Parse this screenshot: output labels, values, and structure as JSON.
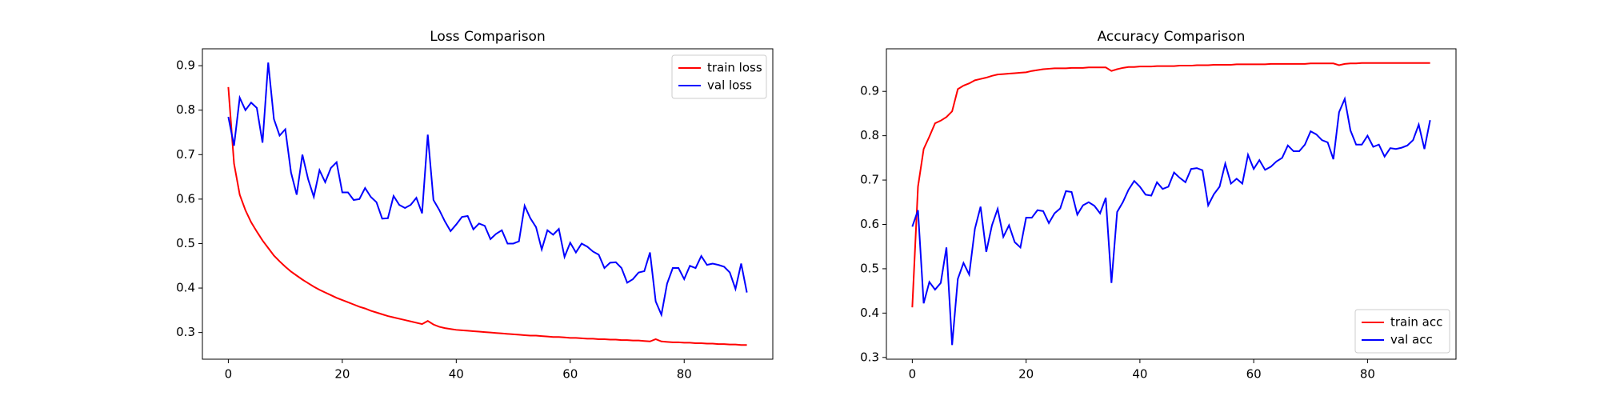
{
  "chart_data": [
    {
      "type": "line",
      "title": "Loss Comparison",
      "legend": "upper right",
      "grid": false,
      "x": [
        0,
        1,
        2,
        3,
        4,
        5,
        6,
        7,
        8,
        9,
        10,
        11,
        12,
        13,
        14,
        15,
        16,
        17,
        18,
        19,
        20,
        21,
        22,
        23,
        24,
        25,
        26,
        27,
        28,
        29,
        30,
        31,
        32,
        33,
        34,
        35,
        36,
        37,
        38,
        39,
        40,
        41,
        42,
        43,
        44,
        45,
        46,
        47,
        48,
        49,
        50,
        51,
        52,
        53,
        54,
        55,
        56,
        57,
        58,
        59,
        60,
        61,
        62,
        63,
        64,
        65,
        66,
        67,
        68,
        69,
        70,
        71,
        72,
        73,
        74,
        75,
        76,
        77,
        78,
        79,
        80,
        81,
        82,
        83,
        84,
        85,
        86,
        87,
        88,
        89,
        90,
        91
      ],
      "series": [
        {
          "name": "train loss",
          "color": "#ff0000",
          "values": [
            0.852,
            0.68,
            0.61,
            0.575,
            0.548,
            0.527,
            0.507,
            0.49,
            0.473,
            0.46,
            0.448,
            0.437,
            0.428,
            0.419,
            0.411,
            0.403,
            0.396,
            0.39,
            0.384,
            0.378,
            0.373,
            0.368,
            0.363,
            0.358,
            0.354,
            0.349,
            0.345,
            0.341,
            0.337,
            0.334,
            0.331,
            0.328,
            0.325,
            0.322,
            0.319,
            0.326,
            0.318,
            0.313,
            0.31,
            0.308,
            0.306,
            0.305,
            0.304,
            0.303,
            0.302,
            0.301,
            0.3,
            0.299,
            0.298,
            0.297,
            0.296,
            0.295,
            0.294,
            0.293,
            0.293,
            0.292,
            0.291,
            0.29,
            0.29,
            0.289,
            0.288,
            0.288,
            0.287,
            0.286,
            0.286,
            0.285,
            0.285,
            0.284,
            0.284,
            0.283,
            0.283,
            0.282,
            0.282,
            0.281,
            0.28,
            0.285,
            0.28,
            0.279,
            0.278,
            0.278,
            0.277,
            0.277,
            0.276,
            0.276,
            0.275,
            0.275,
            0.274,
            0.274,
            0.273,
            0.273,
            0.272,
            0.272
          ]
        },
        {
          "name": "val loss",
          "color": "#0000ff",
          "values": [
            0.785,
            0.72,
            0.828,
            0.8,
            0.817,
            0.805,
            0.727,
            0.907,
            0.78,
            0.743,
            0.757,
            0.66,
            0.61,
            0.7,
            0.645,
            0.605,
            0.665,
            0.638,
            0.67,
            0.683,
            0.615,
            0.615,
            0.598,
            0.6,
            0.625,
            0.605,
            0.593,
            0.556,
            0.557,
            0.607,
            0.587,
            0.58,
            0.587,
            0.603,
            0.568,
            0.745,
            0.598,
            0.576,
            0.55,
            0.528,
            0.543,
            0.56,
            0.562,
            0.532,
            0.545,
            0.54,
            0.51,
            0.522,
            0.53,
            0.5,
            0.5,
            0.505,
            0.585,
            0.557,
            0.537,
            0.487,
            0.53,
            0.52,
            0.533,
            0.47,
            0.502,
            0.48,
            0.5,
            0.493,
            0.482,
            0.475,
            0.445,
            0.457,
            0.458,
            0.445,
            0.412,
            0.42,
            0.435,
            0.438,
            0.48,
            0.37,
            0.34,
            0.41,
            0.445,
            0.445,
            0.42,
            0.45,
            0.445,
            0.472,
            0.452,
            0.455,
            0.452,
            0.448,
            0.435,
            0.398,
            0.455,
            0.39
          ]
        }
      ],
      "xlim": [
        -4.55,
        95.55
      ],
      "ylim": [
        0.24,
        0.938
      ],
      "xticks": [
        0,
        20,
        40,
        60,
        80
      ],
      "yticks": [
        0.3,
        0.4,
        0.5,
        0.6,
        0.7,
        0.8,
        0.9
      ]
    },
    {
      "type": "line",
      "title": "Accuracy Comparison",
      "legend": "lower right",
      "grid": false,
      "x": [
        0,
        1,
        2,
        3,
        4,
        5,
        6,
        7,
        8,
        9,
        10,
        11,
        12,
        13,
        14,
        15,
        16,
        17,
        18,
        19,
        20,
        21,
        22,
        23,
        24,
        25,
        26,
        27,
        28,
        29,
        30,
        31,
        32,
        33,
        34,
        35,
        36,
        37,
        38,
        39,
        40,
        41,
        42,
        43,
        44,
        45,
        46,
        47,
        48,
        49,
        50,
        51,
        52,
        53,
        54,
        55,
        56,
        57,
        58,
        59,
        60,
        61,
        62,
        63,
        64,
        65,
        66,
        67,
        68,
        69,
        70,
        71,
        72,
        73,
        74,
        75,
        76,
        77,
        78,
        79,
        80,
        81,
        82,
        83,
        84,
        85,
        86,
        87,
        88,
        89,
        90,
        91
      ],
      "series": [
        {
          "name": "train acc",
          "color": "#ff0000",
          "values": [
            0.413,
            0.685,
            0.77,
            0.798,
            0.828,
            0.834,
            0.842,
            0.855,
            0.905,
            0.913,
            0.918,
            0.925,
            0.928,
            0.931,
            0.935,
            0.938,
            0.939,
            0.94,
            0.941,
            0.942,
            0.943,
            0.946,
            0.948,
            0.95,
            0.951,
            0.952,
            0.952,
            0.952,
            0.953,
            0.953,
            0.953,
            0.954,
            0.954,
            0.954,
            0.954,
            0.946,
            0.95,
            0.953,
            0.955,
            0.955,
            0.956,
            0.956,
            0.956,
            0.957,
            0.957,
            0.957,
            0.957,
            0.958,
            0.958,
            0.958,
            0.959,
            0.959,
            0.959,
            0.96,
            0.96,
            0.96,
            0.96,
            0.961,
            0.961,
            0.961,
            0.961,
            0.961,
            0.961,
            0.962,
            0.962,
            0.962,
            0.962,
            0.962,
            0.962,
            0.962,
            0.963,
            0.963,
            0.963,
            0.963,
            0.963,
            0.959,
            0.962,
            0.963,
            0.963,
            0.964,
            0.964,
            0.964,
            0.964,
            0.964,
            0.964,
            0.964,
            0.964,
            0.964,
            0.964,
            0.964,
            0.964,
            0.964
          ]
        },
        {
          "name": "val acc",
          "color": "#0000ff",
          "values": [
            0.595,
            0.632,
            0.422,
            0.47,
            0.453,
            0.468,
            0.548,
            0.328,
            0.477,
            0.513,
            0.487,
            0.59,
            0.64,
            0.538,
            0.598,
            0.635,
            0.572,
            0.598,
            0.56,
            0.548,
            0.615,
            0.615,
            0.632,
            0.63,
            0.603,
            0.625,
            0.636,
            0.675,
            0.673,
            0.622,
            0.643,
            0.65,
            0.642,
            0.625,
            0.66,
            0.468,
            0.628,
            0.65,
            0.678,
            0.698,
            0.685,
            0.667,
            0.665,
            0.695,
            0.68,
            0.685,
            0.717,
            0.705,
            0.695,
            0.725,
            0.727,
            0.722,
            0.643,
            0.668,
            0.685,
            0.737,
            0.692,
            0.703,
            0.692,
            0.757,
            0.725,
            0.745,
            0.723,
            0.73,
            0.742,
            0.75,
            0.778,
            0.765,
            0.765,
            0.78,
            0.81,
            0.803,
            0.79,
            0.785,
            0.747,
            0.853,
            0.883,
            0.812,
            0.78,
            0.78,
            0.8,
            0.775,
            0.78,
            0.753,
            0.772,
            0.77,
            0.773,
            0.778,
            0.79,
            0.825,
            0.77,
            0.835
          ]
        }
      ],
      "xlim": [
        -4.55,
        95.55
      ],
      "ylim": [
        0.296,
        0.996
      ],
      "xticks": [
        0,
        20,
        40,
        60,
        80
      ],
      "yticks": [
        0.3,
        0.4,
        0.5,
        0.6,
        0.7,
        0.8,
        0.9
      ]
    }
  ]
}
